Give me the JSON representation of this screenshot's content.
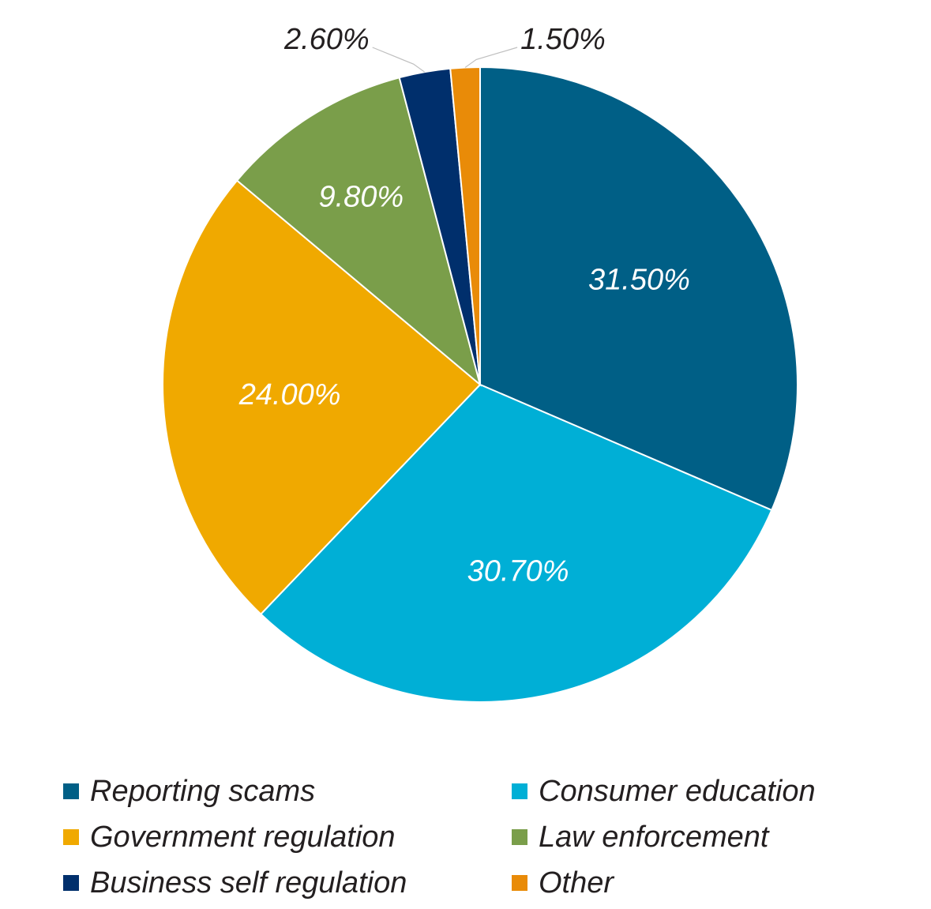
{
  "chart_data": {
    "type": "pie",
    "title": "",
    "legend_position": "bottom",
    "categories": [
      "Reporting scams",
      "Consumer education",
      "Government regulation",
      "Law enforcement",
      "Business self regulation",
      "Other"
    ],
    "values": [
      31.5,
      30.7,
      24.0,
      9.8,
      2.6,
      1.5
    ],
    "data_labels": [
      "31.50%",
      "30.70%",
      "24.00%",
      "9.80%",
      "2.60%",
      "1.50%"
    ],
    "colors": [
      "#005f86",
      "#00afd6",
      "#f0a900",
      "#7a9e4a",
      "#002f6c",
      "#e98b08"
    ],
    "start_angle_deg": 0,
    "direction": "clockwise"
  }
}
